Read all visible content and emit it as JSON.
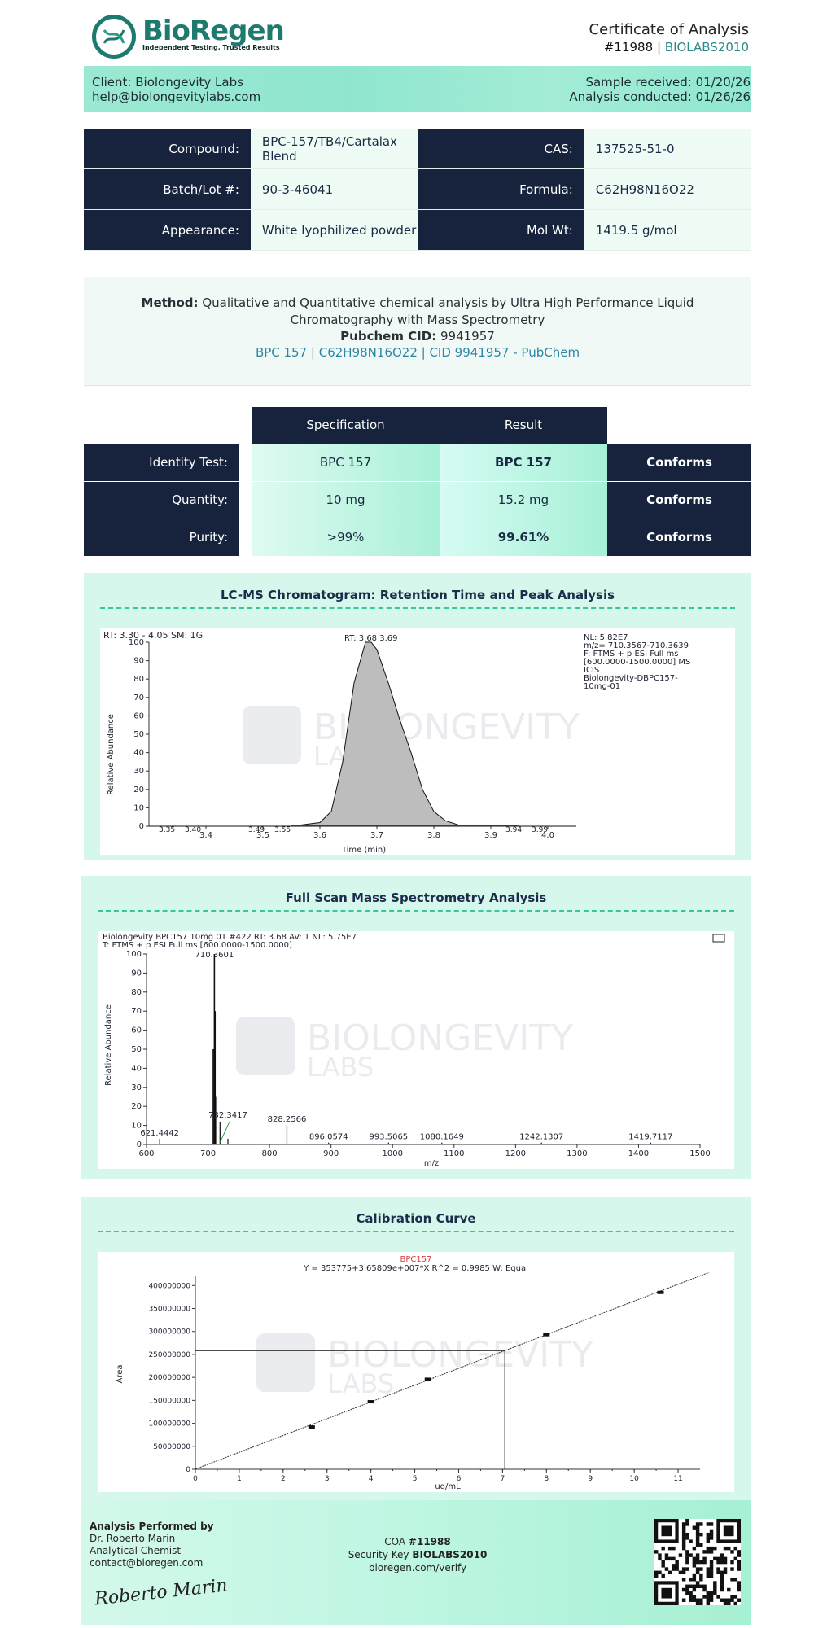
{
  "header": {
    "brand": "BioRegen",
    "tagline": "Independent Testing, Trusted Results",
    "title": "Certificate of Analysis",
    "coa_number": "#11988",
    "separator": "|",
    "lab_code": "BIOLABS2010"
  },
  "client": {
    "name": "Client: Biolongevity Labs",
    "email": "help@biolongevitylabs.com",
    "received": "Sample received: 01/20/26",
    "conducted": "Analysis conducted: 01/26/26"
  },
  "info": {
    "compound_label": "Compound:",
    "compound": "BPC-157/TB4/Cartalax Blend",
    "cas_label": "CAS:",
    "cas": "137525-51-0",
    "batch_label": "Batch/Lot #:",
    "batch": "90-3-46041",
    "formula_label": "Formula:",
    "formula": "C62H98N16O22",
    "appearance_label": "Appearance:",
    "appearance": "White lyophilized powder",
    "molwt_label": "Mol Wt:",
    "molwt": "1419.5 g/mol"
  },
  "method": {
    "label": "Method:",
    "text": "Qualitative and Quantitative chemical analysis by Ultra High Performance Liquid Chromatography with Mass Spectrometry",
    "cid_label": "Pubchem CID:",
    "cid": "9941957",
    "link": "BPC 157 | C62H98N16O22 | CID 9941957 - PubChem"
  },
  "results": {
    "spec_header": "Specification",
    "result_header": "Result",
    "rows": [
      {
        "label": "Identity Test:",
        "spec": "BPC 157",
        "result": "BPC 157",
        "status": "Conforms"
      },
      {
        "label": "Quantity:",
        "spec": "10 mg",
        "result": "15.2 mg",
        "status": "Conforms"
      },
      {
        "label": "Purity:",
        "spec": ">99%",
        "result": "99.61%",
        "status": "Conforms"
      }
    ]
  },
  "watermark": {
    "line1": "BIOLONGEVITY",
    "line2": "LABS"
  },
  "chromatogram": {
    "section_title": "LC-MS Chromatogram: Retention Time and Peak Analysis",
    "header_text": "RT: 3.30 - 4.05   SM: 1G",
    "rt_label": "RT: 3.68    3.69",
    "info_lines": [
      "NL: 5.82E7",
      "m/z= 710.3567-710.3639",
      "F: FTMS + p ESI Full ms",
      "[600.0000-1500.0000]  MS",
      " ICIS",
      "Biolongevity-DBPC157-",
      "10mg-01"
    ],
    "ylabel": "Relative Abundance",
    "xlabel": "Time (min)",
    "small_labels": [
      "3.35",
      "3.40",
      "3.49",
      "3.55",
      "3.94",
      "3.99"
    ]
  },
  "mass_spec": {
    "section_title": "Full Scan Mass Spectrometry Analysis",
    "header_line1": "Biolongevity BPC157 10mg 01 #422   RT: 3.68   AV: 1   NL: 5.75E7",
    "header_line2": "T: FTMS + p ESI Full ms [600.0000-1500.0000]",
    "ylabel": "Relative Abundance",
    "xlabel": "m/z"
  },
  "calibration": {
    "section_title": "Calibration Curve",
    "compound": "BPC157",
    "equation": "Y = 353775+3.65809e+007*X   R^2 = 0.9985   W: Equal",
    "ylabel": "Area",
    "xlabel": "ug/mL"
  },
  "chart_data": [
    {
      "type": "area",
      "title": "",
      "xlabel": "Time (min)",
      "ylabel": "Relative Abundance",
      "xlim": [
        3.3,
        4.05
      ],
      "ylim": [
        0,
        100
      ],
      "x_ticks": [
        "3.4",
        "3.5",
        "3.6",
        "3.7",
        "3.8",
        "3.9",
        "4.0"
      ],
      "y_ticks": [
        "0",
        "10",
        "20",
        "30",
        "40",
        "50",
        "60",
        "70",
        "80",
        "90",
        "100"
      ],
      "x": [
        3.3,
        3.55,
        3.6,
        3.62,
        3.64,
        3.66,
        3.68,
        3.69,
        3.7,
        3.72,
        3.74,
        3.76,
        3.78,
        3.8,
        3.82,
        3.85,
        4.05
      ],
      "y": [
        0,
        0,
        2,
        8,
        35,
        78,
        100,
        100,
        96,
        78,
        58,
        40,
        20,
        8,
        3,
        0,
        0
      ]
    },
    {
      "type": "bar",
      "title": "",
      "xlabel": "m/z",
      "ylabel": "Relative Abundance",
      "xlim": [
        600,
        1500
      ],
      "ylim": [
        0,
        100
      ],
      "x_ticks": [
        "600",
        "700",
        "800",
        "900",
        "1000",
        "1100",
        "1200",
        "1300",
        "1400",
        "1500"
      ],
      "y_ticks": [
        "0",
        "10",
        "20",
        "30",
        "40",
        "50",
        "60",
        "70",
        "80",
        "90",
        "100"
      ],
      "peaks": [
        {
          "mz": 621.4442,
          "intensity": 3,
          "label": "621.4442"
        },
        {
          "mz": 708.5,
          "intensity": 50,
          "label": ""
        },
        {
          "mz": 710.3601,
          "intensity": 100,
          "label": "710.3601"
        },
        {
          "mz": 711.5,
          "intensity": 70,
          "label": ""
        },
        {
          "mz": 712.5,
          "intensity": 25,
          "label": ""
        },
        {
          "mz": 719.5,
          "intensity": 12,
          "label": ""
        },
        {
          "mz": 732.3417,
          "intensity": 3,
          "label": "732.3417"
        },
        {
          "mz": 828.2566,
          "intensity": 10,
          "label": "828.2566"
        },
        {
          "mz": 896.0574,
          "intensity": 1,
          "label": "896.0574"
        },
        {
          "mz": 993.5065,
          "intensity": 1,
          "label": "993.5065"
        },
        {
          "mz": 1080.1649,
          "intensity": 1,
          "label": "1080.1649"
        },
        {
          "mz": 1242.1307,
          "intensity": 1,
          "label": "1242.1307"
        },
        {
          "mz": 1419.7117,
          "intensity": 1,
          "label": "1419.7117"
        }
      ]
    },
    {
      "type": "scatter",
      "title": "BPC157",
      "xlabel": "ug/mL",
      "ylabel": "Area",
      "xlim": [
        0,
        11.5
      ],
      "ylim": [
        0,
        420000000
      ],
      "x_ticks": [
        "0",
        "1",
        "2",
        "3",
        "4",
        "5",
        "6",
        "7",
        "8",
        "9",
        "10",
        "11"
      ],
      "y_ticks": [
        "0",
        "50000000",
        "100000000",
        "150000000",
        "200000000",
        "250000000",
        "300000000",
        "350000000",
        "400000000"
      ],
      "fit": {
        "intercept": 353775,
        "slope": 36580900
      },
      "x": [
        2.65,
        4.0,
        5.3,
        8.0,
        10.6
      ],
      "y": [
        92000000,
        147000000,
        196000000,
        293000000,
        385000000
      ],
      "sample": {
        "x": 7.05,
        "y": 258000000
      }
    }
  ],
  "footer": {
    "performed_by": "Analysis Performed by",
    "analyst": "Dr. Roberto Marin",
    "role": "Analytical Chemist",
    "contact": "contact@bioregen.com",
    "signature": "Roberto Marin",
    "coa_label": "COA",
    "coa_number": "#11988",
    "key_label": "Security Key",
    "key": "BIOLABS2010",
    "verify": "bioregen.com/verify"
  }
}
